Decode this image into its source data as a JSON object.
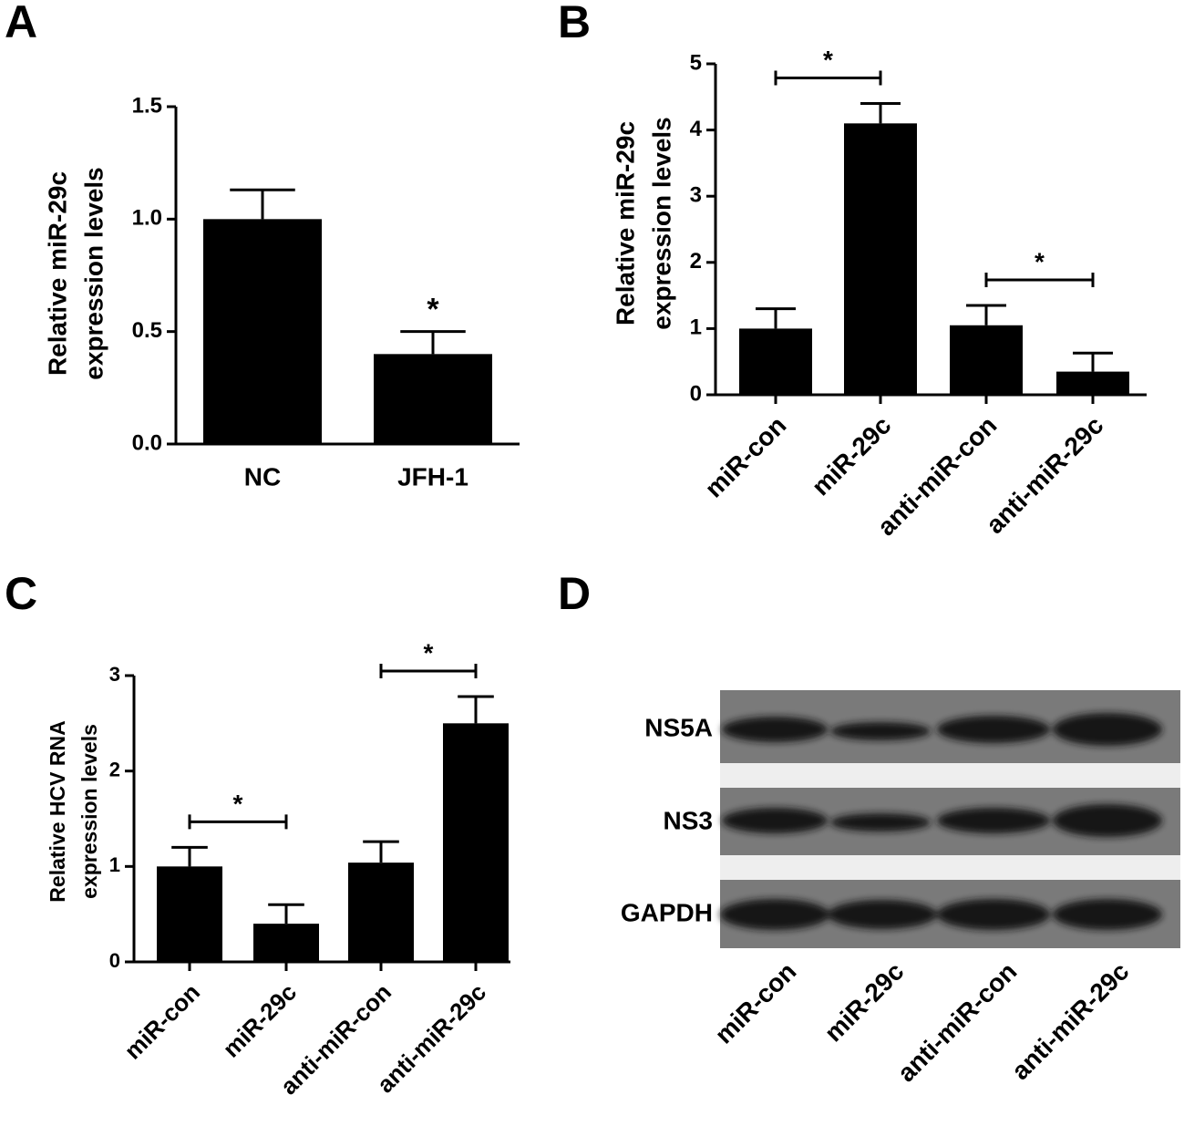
{
  "chart_data": [
    {
      "type": "bar",
      "panel": "A",
      "ylabel": [
        "Relative miR-29c",
        "expression levels"
      ],
      "categories": [
        "NC",
        "JFH-1"
      ],
      "values": [
        1.0,
        0.4
      ],
      "errors": [
        0.13,
        0.1
      ],
      "color": "#000000",
      "ylim": [
        0,
        1.5
      ],
      "yticks": [
        {
          "value": 0,
          "label": "0.0"
        },
        0.5,
        {
          "value": 1,
          "label": "1.0"
        },
        1.5
      ],
      "annotations": [
        {
          "label": "*",
          "categories": [
            "JFH-1"
          ]
        }
      ]
    },
    {
      "type": "bar",
      "panel": "B",
      "ylabel": [
        "Relative miR-29c",
        "expression levels"
      ],
      "categories": [
        "miR-con",
        "miR-29c",
        "anti-miR-con",
        "anti-miR-29c"
      ],
      "values": [
        1.0,
        4.1,
        1.05,
        0.35
      ],
      "errors": [
        0.3,
        0.3,
        0.3,
        0.28
      ],
      "color": "#000000",
      "ylim": [
        0,
        5
      ],
      "yticks": [
        0,
        1,
        2,
        3,
        4,
        5
      ],
      "annotations": [
        {
          "label": "*",
          "categories": [
            "miR-con",
            "miR-29c"
          ]
        },
        {
          "label": "*",
          "categories": [
            "anti-miR-con",
            "anti-miR-29c"
          ]
        }
      ]
    },
    {
      "type": "bar",
      "panel": "C",
      "ylabel": [
        "Relative HCV RNA",
        "expression levels"
      ],
      "categories": [
        "miR-con",
        "miR-29c",
        "anti-miR-con",
        "anti-miR-29c"
      ],
      "values": [
        1.0,
        0.4,
        1.04,
        2.5
      ],
      "errors": [
        0.2,
        0.2,
        0.22,
        0.28
      ],
      "color": "#000000",
      "ylim": [
        0,
        3
      ],
      "yticks": [
        0,
        1,
        2,
        3
      ],
      "annotations": [
        {
          "label": "*",
          "categories": [
            "miR-con",
            "miR-29c"
          ]
        },
        {
          "label": "*",
          "categories": [
            "anti-miR-con",
            "anti-miR-29c"
          ]
        }
      ]
    }
  ],
  "blot": {
    "panel": "D",
    "rows": [
      "NS5A",
      "NS3",
      "GAPDH"
    ],
    "lanes": [
      "miR-con",
      "miR-29c",
      "anti-miR-con",
      "anti-miR-29c"
    ]
  }
}
